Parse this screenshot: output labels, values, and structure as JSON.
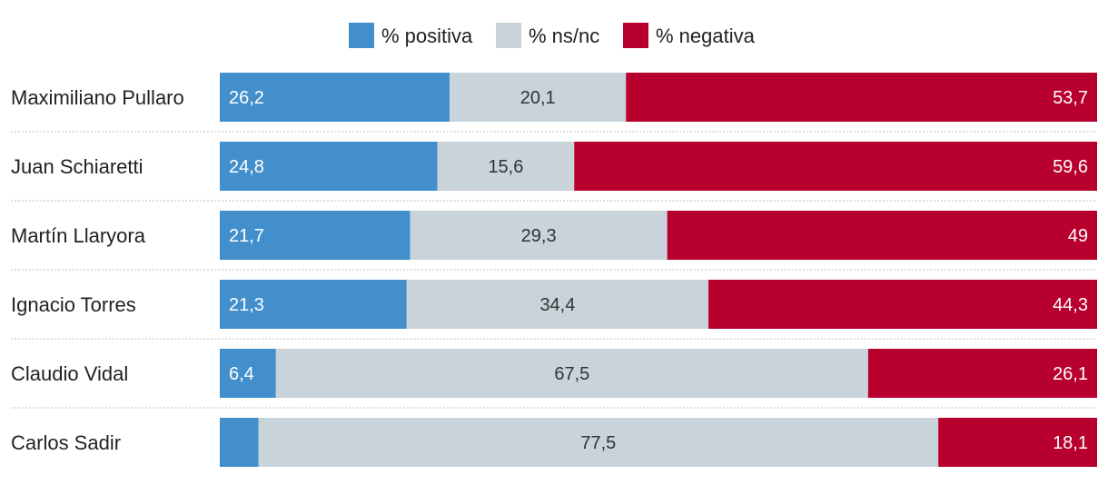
{
  "chart_data": {
    "type": "bar",
    "orientation": "horizontal",
    "stacked": true,
    "normalized": true,
    "title": "",
    "xlabel": "",
    "ylabel": "",
    "xlim": [
      0,
      100
    ],
    "legend_position": "top-center",
    "categories": [
      "Maximiliano Pullaro",
      "Juan Schiaretti",
      "Martín Llaryora",
      "Ignacio Torres",
      "Claudio Vidal",
      "Carlos Sadir"
    ],
    "series": [
      {
        "name": "% positiva",
        "color": "#428fcc",
        "label_color": "#ffffff",
        "label_align": "start",
        "values": [
          26.2,
          24.8,
          21.7,
          21.3,
          6.4,
          4.4
        ],
        "labels": [
          "26,2",
          "24,8",
          "21,7",
          "21,3",
          "6,4",
          ""
        ]
      },
      {
        "name": "% ns/nc",
        "color": "#c8d3da",
        "label_color": "#333333",
        "label_align": "middle",
        "values": [
          20.1,
          15.6,
          29.3,
          34.4,
          67.5,
          77.5
        ],
        "labels": [
          "20,1",
          "15,6",
          "29,3",
          "34,4",
          "67,5",
          "77,5"
        ]
      },
      {
        "name": "% negativa",
        "color": "#b8002f",
        "label_color": "#ffffff",
        "label_align": "end",
        "values": [
          53.7,
          59.6,
          49,
          44.3,
          26.1,
          18.1
        ],
        "labels": [
          "53,7",
          "59,6",
          "49",
          "44,3",
          "26,1",
          "18,1"
        ]
      }
    ]
  }
}
